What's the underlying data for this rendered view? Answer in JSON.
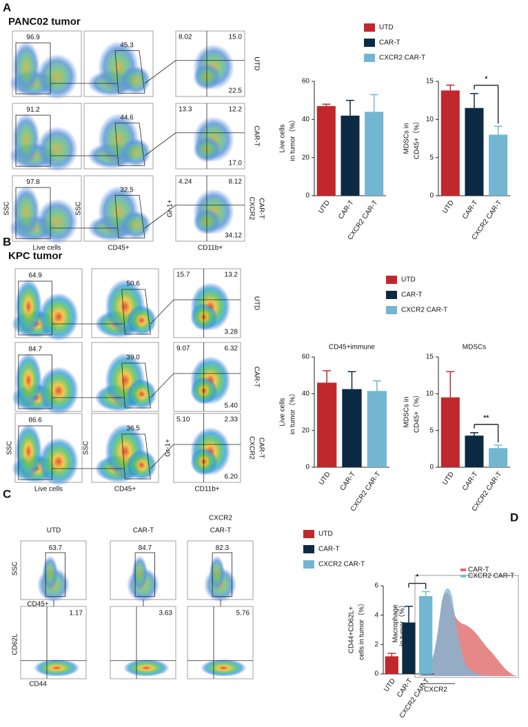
{
  "panel_labels": [
    "A",
    "B",
    "C",
    "D"
  ],
  "titles": {
    "a": "PANC02 tumor",
    "b": "KPC tumor"
  },
  "flow_a": {
    "row_labels": [
      [
        "UTD"
      ],
      [
        "CAR-T"
      ],
      [
        "CXCR2",
        "CAR-T"
      ]
    ],
    "live_gates": [
      "96.9",
      "91.2",
      "97.8"
    ],
    "cd45_gates": [
      "45.3",
      "44.6",
      "32.5"
    ],
    "quadrants": [
      [
        "8.02",
        "15.0",
        "22.5"
      ],
      [
        "13.3",
        "12.2",
        "17.0"
      ],
      [
        "4.24",
        "8.12",
        "34.12"
      ]
    ],
    "axis_labels": [
      "SSC",
      "Live cells",
      "SSC",
      "CD45+",
      "Gr-1+",
      "CD11b+"
    ]
  },
  "flow_b": {
    "row_labels": [
      [
        "UTD"
      ],
      [
        "CAR-T"
      ],
      [
        "CXCR2",
        "CAR-T"
      ]
    ],
    "live_gates": [
      "64.9",
      "84.7",
      "86.6"
    ],
    "cd45_gates": [
      "50.6",
      "39.0",
      "36.5"
    ],
    "quadrants": [
      [
        "15.7",
        "13.2",
        "3.28"
      ],
      [
        "9.07",
        "6.32",
        "5.40"
      ],
      [
        "5.10",
        "2.33",
        "6.20"
      ]
    ],
    "axis_labels": [
      "SSC",
      "Live cells",
      "SSC",
      "CD45+",
      "Gr-1+",
      "CD11b+"
    ]
  },
  "flow_c": {
    "column_labels": [
      [
        "UTD"
      ],
      [
        "CAR-T"
      ],
      [
        "CXCR2",
        "CAR-T"
      ]
    ],
    "top_gates": [
      "63.7",
      "84.7",
      "82.3"
    ],
    "bottom_gates": [
      "1.17",
      "3.63",
      "5.76"
    ],
    "axis_labels": [
      "SSC",
      "CD45+",
      "CD62L",
      "CD44"
    ]
  },
  "histogram_d": {
    "legend": [
      {
        "label": "CAR-T",
        "color": "#e06a6a"
      },
      {
        "label": "CXCR2 CAR-T",
        "color": "#7ab8d8"
      }
    ],
    "ylabel": [
      "Macrophage",
      "in tumor（%）"
    ],
    "xlabel": "CXCR2"
  },
  "legends": [
    {
      "items": [
        {
          "label": "UTD",
          "color": "#c0282d"
        },
        {
          "label": "CAR-T",
          "color": "#0d2a44"
        },
        {
          "label": "CXCR2 CAR-T",
          "color": "#72b6d2"
        }
      ]
    },
    {
      "items": [
        {
          "label": "UTD",
          "color": "#c0282d"
        },
        {
          "label": "CAR-T",
          "color": "#0d2a44"
        },
        {
          "label": "CXCR2 CAR-T",
          "color": "#72b6d2"
        }
      ]
    },
    {
      "items": [
        {
          "label": "UTD",
          "color": "#c0282d"
        },
        {
          "label": "CAR-T",
          "color": "#0d2a44"
        },
        {
          "label": "CXCR2 CAR-T",
          "color": "#72b6d2"
        }
      ]
    }
  ],
  "chart_data": [
    {
      "type": "bar",
      "ylabel": [
        "Live cells",
        "in tumor（%）"
      ],
      "categories": [
        "UTD",
        "CAR-T",
        "CXCR2 CAR-T"
      ],
      "values": [
        47,
        42,
        44
      ],
      "errors": [
        1,
        8,
        9
      ],
      "colors": [
        "#c0282d",
        "#0d2a44",
        "#72b6d2"
      ],
      "ylim": [
        0,
        60
      ],
      "yticks": [
        0,
        20,
        40,
        60
      ]
    },
    {
      "type": "bar",
      "ylabel": [
        "MDSCs in",
        "CD45+（%）"
      ],
      "categories": [
        "UTD",
        "CAR-T",
        "CXCR2 CAR-T"
      ],
      "values": [
        13.8,
        11.5,
        8.0
      ],
      "errors": [
        0.7,
        1.9,
        1.1
      ],
      "colors": [
        "#c0282d",
        "#0d2a44",
        "#72b6d2"
      ],
      "ylim": [
        0,
        15
      ],
      "yticks": [
        0,
        5,
        10,
        15
      ],
      "significance": "*"
    },
    {
      "type": "bar",
      "title": "CD45+immune",
      "ylabel": [
        "Live cells",
        "in tumor（%）"
      ],
      "categories": [
        "UTD",
        "CAR-T",
        "CXCR2 CAR-T"
      ],
      "values": [
        46,
        42.5,
        41.5
      ],
      "errors": [
        6.5,
        9.5,
        5.5
      ],
      "colors": [
        "#c0282d",
        "#0d2a44",
        "#72b6d2"
      ],
      "ylim": [
        0,
        60
      ],
      "yticks": [
        0,
        20,
        40,
        60
      ]
    },
    {
      "type": "bar",
      "title": "MDSCs",
      "ylabel": [
        "MDSCs in",
        "CD45+（%）"
      ],
      "categories": [
        "UTD",
        "CAR-T",
        "CXCR2 CAR-T"
      ],
      "values": [
        9.5,
        4.3,
        2.6
      ],
      "errors": [
        3.5,
        0.4,
        0.4
      ],
      "colors": [
        "#c0282d",
        "#0d2a44",
        "#72b6d2"
      ],
      "ylim": [
        0,
        15
      ],
      "yticks": [
        0,
        5,
        10,
        15
      ],
      "significance": "**"
    },
    {
      "type": "bar",
      "ylabel": [
        "CD44+CD62L+",
        "cells in tumor（%）"
      ],
      "categories": [
        "UTD",
        "CAR-T",
        "CXCR2 CAR-T"
      ],
      "values": [
        1.2,
        3.5,
        5.3
      ],
      "errors": [
        0.2,
        1.1,
        0.3
      ],
      "colors": [
        "#c0282d",
        "#0d2a44",
        "#72b6d2"
      ],
      "ylim": [
        0,
        6
      ],
      "yticks": [
        0,
        2,
        4,
        6
      ],
      "significance": "*"
    }
  ]
}
